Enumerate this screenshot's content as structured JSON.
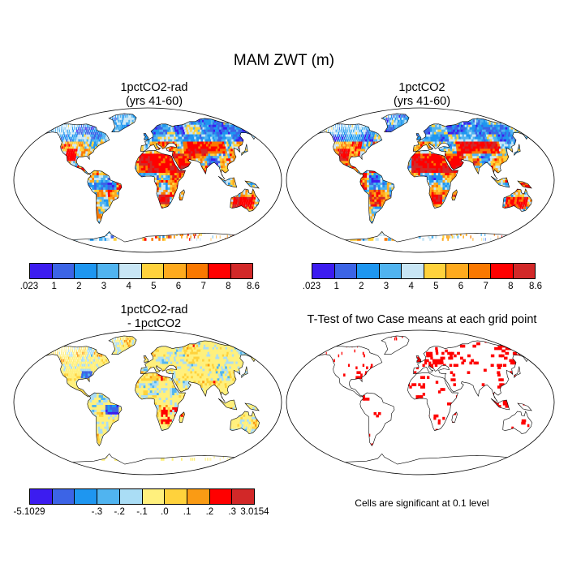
{
  "title": "MAM ZWT (m)",
  "panels": [
    {
      "id": "p1",
      "title_line1": "1pctCO2-rad",
      "title_line2": "(yrs 41-60)",
      "kind": "field"
    },
    {
      "id": "p2",
      "title_line1": "1pctCO2",
      "title_line2": "(yrs 41-60)",
      "kind": "field"
    },
    {
      "id": "p3",
      "title_line1": "1pctCO2-rad",
      "title_line2": "- 1pctCO2",
      "kind": "difference"
    },
    {
      "id": "p4",
      "title_line1": "T-Test of two Case means at each grid point",
      "title_line2": "",
      "kind": "significance"
    }
  ],
  "colorbar_field": {
    "labels": [
      ".023",
      "1",
      "2",
      "3",
      "4",
      "5",
      "6",
      "7",
      "8",
      "8.6"
    ],
    "colors": [
      "#3c1cf0",
      "#3c64e6",
      "#1e96f0",
      "#50b4f0",
      "#c8e6f5",
      "#ffd23c",
      "#ffaa1e",
      "#fa7800",
      "#ff0000",
      "#d22828"
    ]
  },
  "colorbar_diff": {
    "labels": [
      "-5.1029",
      "-.3",
      "-.2",
      "-.1",
      ".0",
      ".1",
      ".2",
      ".3",
      "3.0154"
    ],
    "colors": [
      "#3c1cf0",
      "#3c64e6",
      "#1e96f0",
      "#50b4f0",
      "#aaddf5",
      "#fff07d",
      "#ffd23c",
      "#fa9b14",
      "#ff0000",
      "#d22828"
    ]
  },
  "significance_color": "#ff0000",
  "significance_note": "Cells are significant at 0.1 level"
}
